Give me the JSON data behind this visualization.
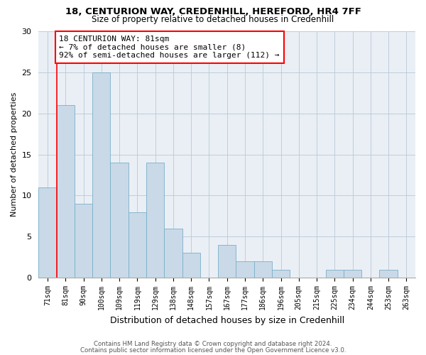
{
  "title1": "18, CENTURION WAY, CREDENHILL, HEREFORD, HR4 7FF",
  "title2": "Size of property relative to detached houses in Credenhill",
  "xlabel": "Distribution of detached houses by size in Credenhill",
  "ylabel": "Number of detached properties",
  "categories": [
    "71sqm",
    "81sqm",
    "90sqm",
    "100sqm",
    "109sqm",
    "119sqm",
    "129sqm",
    "138sqm",
    "148sqm",
    "157sqm",
    "167sqm",
    "177sqm",
    "186sqm",
    "196sqm",
    "205sqm",
    "215sqm",
    "225sqm",
    "234sqm",
    "244sqm",
    "253sqm",
    "263sqm"
  ],
  "values": [
    11,
    21,
    9,
    25,
    14,
    8,
    14,
    6,
    3,
    0,
    4,
    2,
    2,
    1,
    0,
    0,
    1,
    1,
    0,
    1,
    0
  ],
  "bar_color": "#c9d9e8",
  "bar_edge_color": "#7aafc8",
  "vline_x": 0.5,
  "annotation_text": "18 CENTURION WAY: 81sqm\n← 7% of detached houses are smaller (8)\n92% of semi-detached houses are larger (112) →",
  "annotation_box_color": "white",
  "annotation_box_edge_color": "red",
  "vline_color": "red",
  "ylim": [
    0,
    30
  ],
  "yticks": [
    0,
    5,
    10,
    15,
    20,
    25,
    30
  ],
  "footer1": "Contains HM Land Registry data © Crown copyright and database right 2024.",
  "footer2": "Contains public sector information licensed under the Open Government Licence v3.0.",
  "plot_bg_color": "#eaeff5"
}
